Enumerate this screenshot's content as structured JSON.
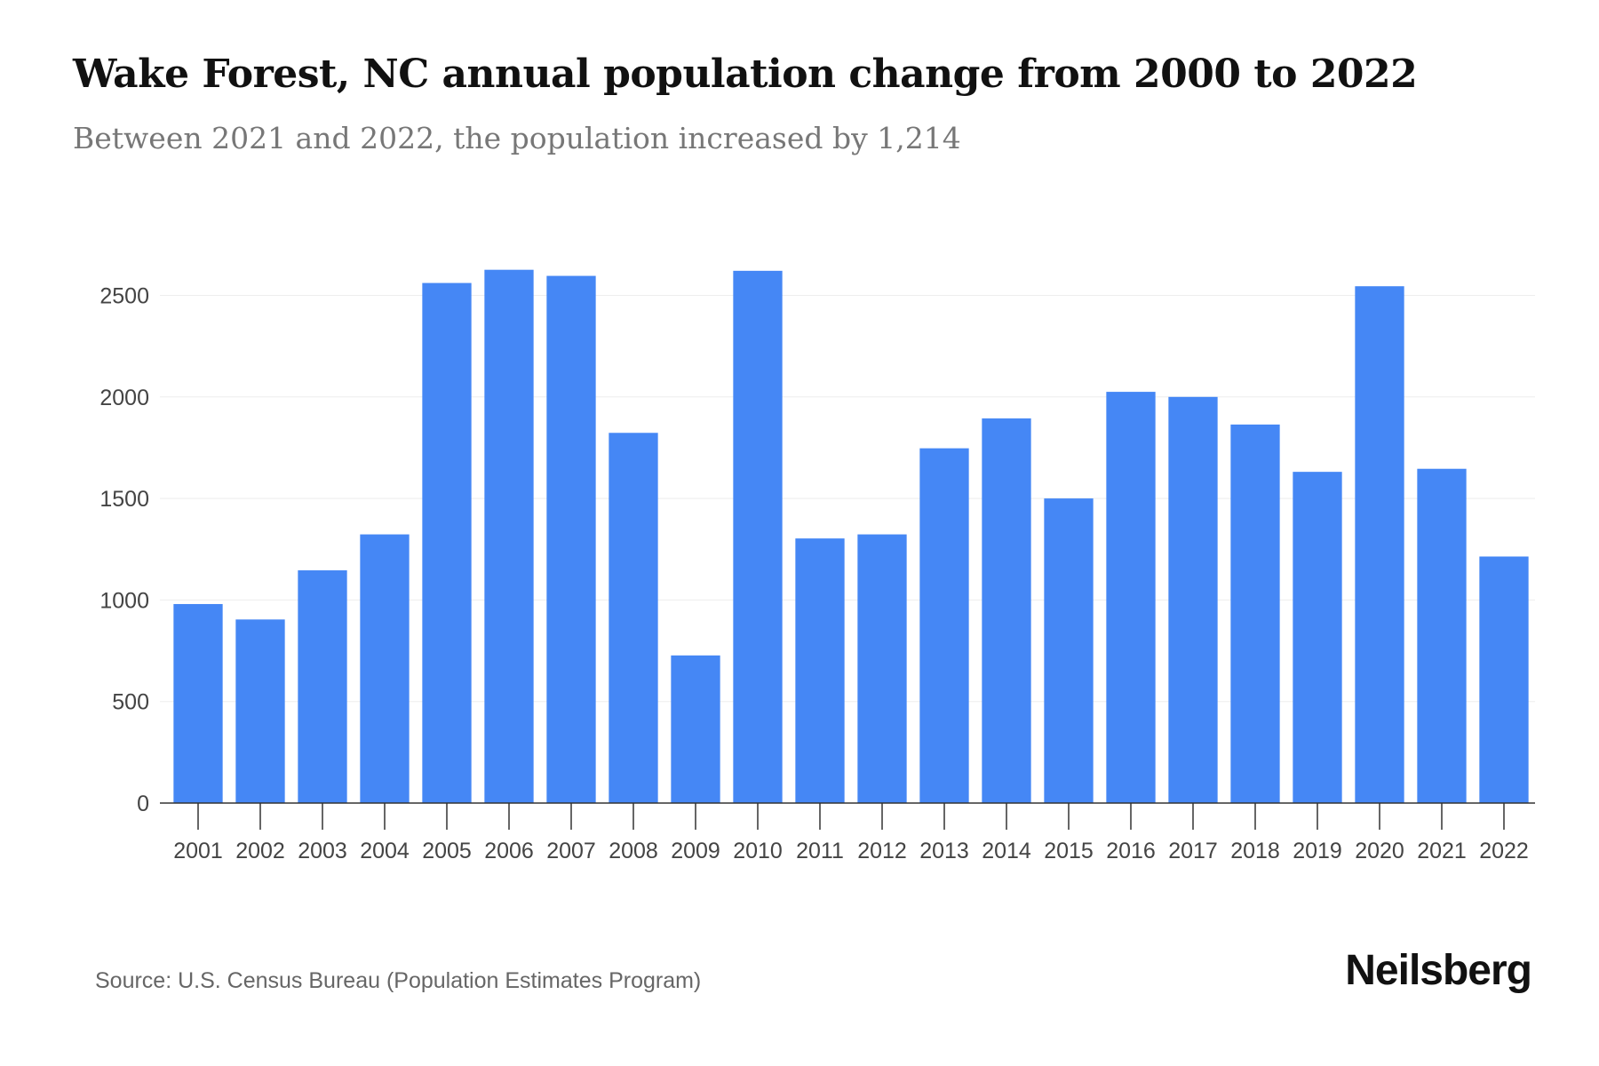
{
  "chart_data": {
    "type": "bar",
    "title": "Wake Forest, NC annual population change from 2000 to 2022",
    "subtitle": "Between 2021 and 2022, the population increased by 1,214",
    "xlabel": "",
    "ylabel": "",
    "ylim": [
      0,
      2700
    ],
    "yticks": [
      0,
      500,
      1000,
      1500,
      2000,
      2500
    ],
    "grid": true,
    "bar_color": "#4587f5",
    "categories": [
      "2001",
      "2002",
      "2003",
      "2004",
      "2005",
      "2006",
      "2007",
      "2008",
      "2009",
      "2010",
      "2011",
      "2012",
      "2013",
      "2014",
      "2015",
      "2016",
      "2017",
      "2018",
      "2019",
      "2020",
      "2021",
      "2022"
    ],
    "values": [
      980,
      904,
      1146,
      1323,
      2561,
      2626,
      2596,
      1823,
      727,
      2621,
      1303,
      1323,
      1747,
      1894,
      1500,
      2025,
      2000,
      1864,
      1631,
      2545,
      1646,
      1214
    ]
  },
  "footer": {
    "source": "Source: U.S. Census Bureau (Population Estimates Program)",
    "brand": "Neilsberg"
  }
}
